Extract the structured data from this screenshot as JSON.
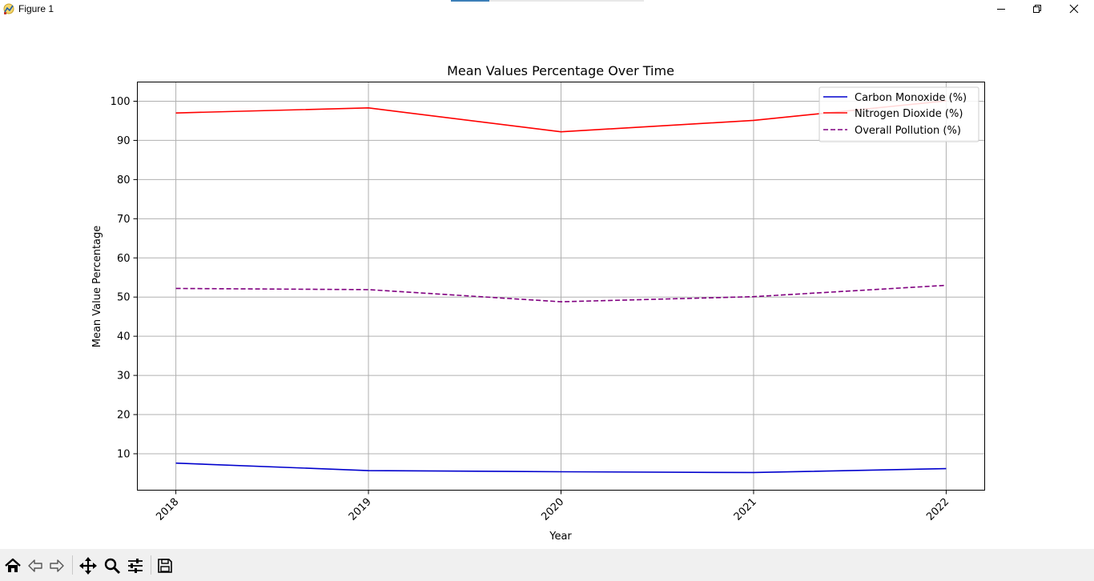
{
  "window": {
    "title": "Figure 1",
    "icons": [
      "app-icon",
      "minimize-icon",
      "maximize-icon",
      "close-icon"
    ]
  },
  "toolbar": {
    "icons": [
      "home-icon",
      "back-arrow-icon",
      "forward-arrow-icon",
      "pan-icon",
      "zoom-icon",
      "configure-subplots-icon",
      "save-icon"
    ]
  },
  "chart_data": {
    "type": "line",
    "title": "Mean Values Percentage Over Time",
    "xlabel": "Year",
    "ylabel": "Mean Value Percentage",
    "categories": [
      "2018",
      "2019",
      "2020",
      "2021",
      "2022"
    ],
    "xlim": [
      2017.8,
      2022.2
    ],
    "ylim": [
      0.7,
      104.9
    ],
    "yticks": [
      10,
      20,
      30,
      40,
      50,
      60,
      70,
      80,
      90,
      100
    ],
    "grid": true,
    "legend": "top-right",
    "series": [
      {
        "name": "Carbon Monoxide (%)",
        "values": [
          7.6,
          5.7,
          5.4,
          5.2,
          6.2
        ],
        "color": "#0000cd",
        "style": "solid"
      },
      {
        "name": "Nitrogen Dioxide (%)",
        "values": [
          97.0,
          98.3,
          92.2,
          95.1,
          100.1
        ],
        "color": "#ff0000",
        "style": "solid"
      },
      {
        "name": "Overall Pollution (%)",
        "values": [
          52.2,
          51.9,
          48.8,
          50.1,
          53.0
        ],
        "color": "#800080",
        "style": "dashed"
      }
    ]
  }
}
